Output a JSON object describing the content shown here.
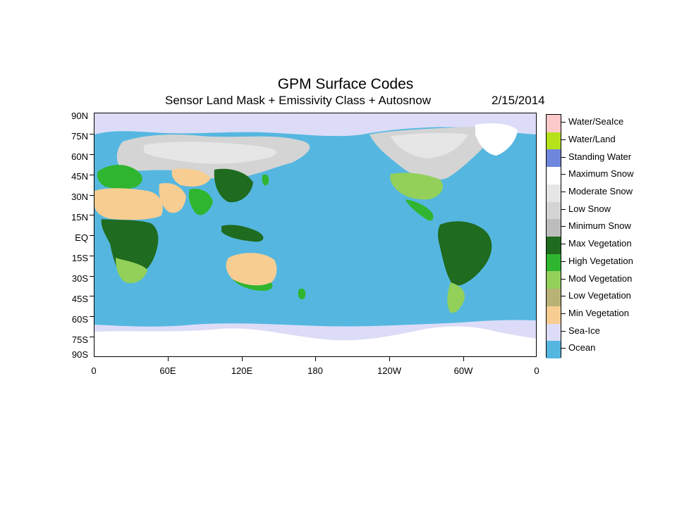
{
  "title": "GPM Surface Codes",
  "subtitle": "Sensor Land Mask + Emissivity Class + Autosnow",
  "date": "2/15/2014",
  "lat_labels": [
    "90N",
    "75N",
    "60N",
    "45N",
    "30N",
    "15N",
    "EQ",
    "15S",
    "30S",
    "45S",
    "60S",
    "75S",
    "90S"
  ],
  "lon_labels": [
    "0",
    "60E",
    "120E",
    "180",
    "120W",
    "60W",
    "0"
  ],
  "legend": [
    {
      "label": "Water/SeaIce",
      "color": "#fbc9c9"
    },
    {
      "label": "Water/Land",
      "color": "#b5e21b"
    },
    {
      "label": "Standing Water",
      "color": "#6e86db"
    },
    {
      "label": "Maximum Snow",
      "color": "#ffffff"
    },
    {
      "label": "Moderate Snow",
      "color": "#e6e6e6"
    },
    {
      "label": "Low Snow",
      "color": "#d4d4d4"
    },
    {
      "label": "Minimum Snow",
      "color": "#bdbdbd"
    },
    {
      "label": "Max Vegetation",
      "color": "#1f6b1f"
    },
    {
      "label": "High Vegetation",
      "color": "#2fb52f"
    },
    {
      "label": "Mod Vegetation",
      "color": "#93d05a"
    },
    {
      "label": "Low Vegetation",
      "color": "#b8b277"
    },
    {
      "label": "Min Vegetation",
      "color": "#f8cd91"
    },
    {
      "label": "Sea-Ice",
      "color": "#dcdcf8"
    },
    {
      "label": "Ocean",
      "color": "#55b7e0"
    }
  ]
}
